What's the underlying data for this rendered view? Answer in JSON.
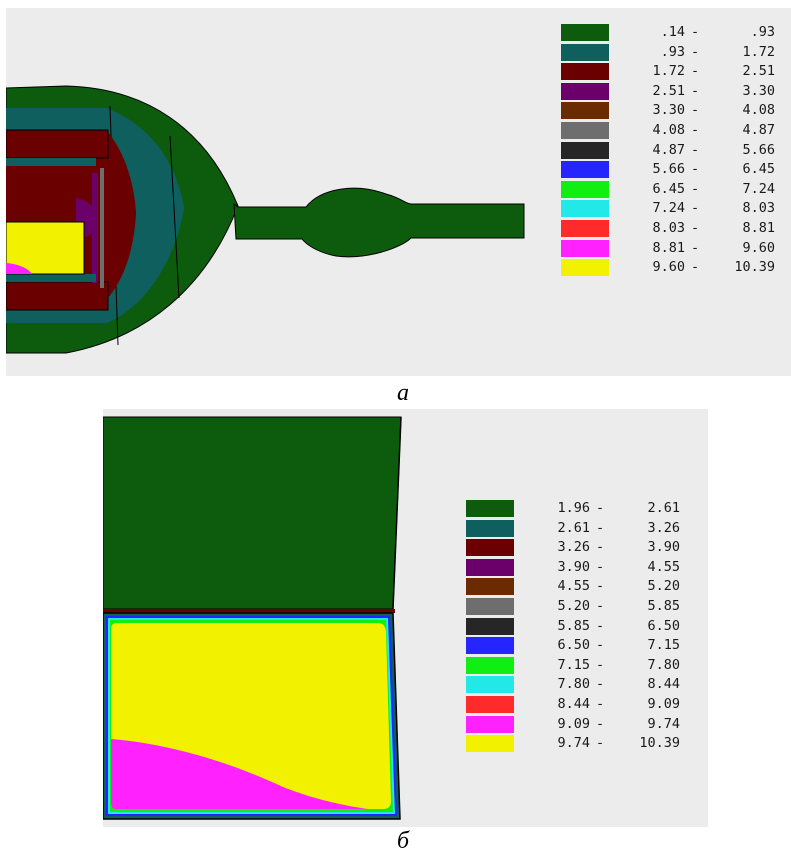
{
  "figure_a": {
    "caption": "а",
    "legend": [
      {
        "from": ".14",
        "to": ".93",
        "color": "#0d5c0d"
      },
      {
        "from": ".93",
        "to": "1.72",
        "color": "#0f5f5f"
      },
      {
        "from": "1.72",
        "to": "2.51",
        "color": "#6b0000"
      },
      {
        "from": "2.51",
        "to": "3.30",
        "color": "#6b006b"
      },
      {
        "from": "3.30",
        "to": "4.08",
        "color": "#6b2a00"
      },
      {
        "from": "4.08",
        "to": "4.87",
        "color": "#6e6e6e"
      },
      {
        "from": "4.87",
        "to": "5.66",
        "color": "#262626"
      },
      {
        "from": "5.66",
        "to": "6.45",
        "color": "#2525ff"
      },
      {
        "from": "6.45",
        "to": "7.24",
        "color": "#11ee11"
      },
      {
        "from": "7.24",
        "to": "8.03",
        "color": "#22e8e8"
      },
      {
        "from": "8.03",
        "to": "8.81",
        "color": "#ff2a2a"
      },
      {
        "from": "8.81",
        "to": "9.60",
        "color": "#ff22ff"
      },
      {
        "from": "9.60",
        "to": "10.39",
        "color": "#f2f200"
      }
    ]
  },
  "figure_b": {
    "caption": "б",
    "legend": [
      {
        "from": "1.96",
        "to": "2.61",
        "color": "#0d5c0d"
      },
      {
        "from": "2.61",
        "to": "3.26",
        "color": "#0f5f5f"
      },
      {
        "from": "3.26",
        "to": "3.90",
        "color": "#6b0000"
      },
      {
        "from": "3.90",
        "to": "4.55",
        "color": "#6b006b"
      },
      {
        "from": "4.55",
        "to": "5.20",
        "color": "#6b2a00"
      },
      {
        "from": "5.20",
        "to": "5.85",
        "color": "#6e6e6e"
      },
      {
        "from": "5.85",
        "to": "6.50",
        "color": "#262626"
      },
      {
        "from": "6.50",
        "to": "7.15",
        "color": "#2525ff"
      },
      {
        "from": "7.15",
        "to": "7.80",
        "color": "#11ee11"
      },
      {
        "from": "7.80",
        "to": "8.44",
        "color": "#22e8e8"
      },
      {
        "from": "8.44",
        "to": "9.09",
        "color": "#ff2a2a"
      },
      {
        "from": "9.09",
        "to": "9.74",
        "color": "#ff22ff"
      },
      {
        "from": "9.74",
        "to": "10.39",
        "color": "#f2f200"
      }
    ]
  }
}
